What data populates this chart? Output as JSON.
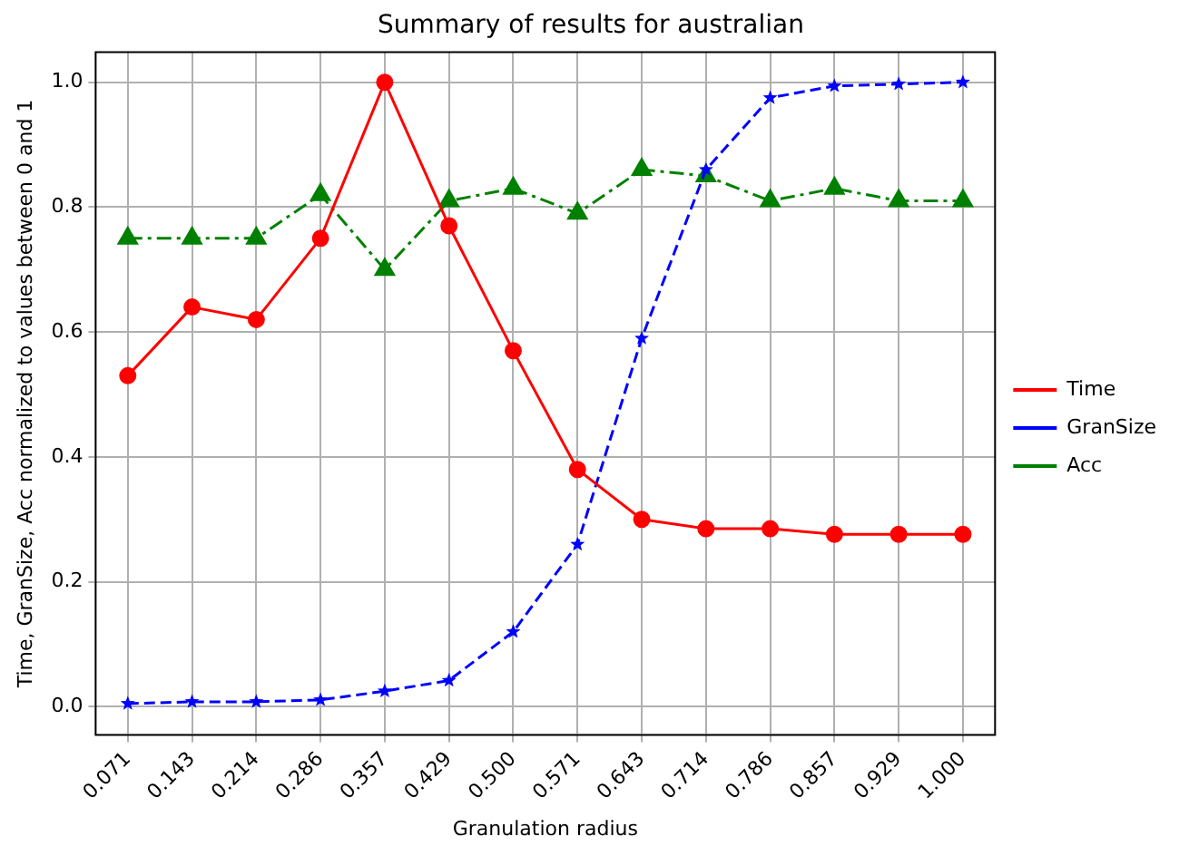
{
  "chart_data": {
    "type": "line",
    "title": "Summary of results for australian",
    "xlabel": "Granulation radius",
    "ylabel": "Time, GranSize, Acc normalized to values between 0 and 1",
    "categories": [
      "0.071",
      "0.143",
      "0.214",
      "0.286",
      "0.357",
      "0.429",
      "0.500",
      "0.571",
      "0.643",
      "0.714",
      "0.786",
      "0.857",
      "0.929",
      "1.000"
    ],
    "series": [
      {
        "name": "Time",
        "color": "#ff0000",
        "marker": "circle",
        "line_style": "solid",
        "values": [
          0.53,
          0.64,
          0.62,
          0.75,
          1.0,
          0.77,
          0.57,
          0.38,
          0.3,
          0.285,
          0.285,
          0.276,
          0.276,
          0.276
        ]
      },
      {
        "name": "GranSize",
        "color": "#0000ff",
        "marker": "star",
        "line_style": "dashed",
        "values": [
          0.005,
          0.008,
          0.008,
          0.011,
          0.025,
          0.042,
          0.12,
          0.26,
          0.59,
          0.86,
          0.975,
          0.994,
          0.997,
          1.0
        ]
      },
      {
        "name": "Acc",
        "color": "#008000",
        "marker": "triangle",
        "line_style": "dashdot",
        "values": [
          0.75,
          0.75,
          0.75,
          0.82,
          0.7,
          0.81,
          0.83,
          0.79,
          0.86,
          0.85,
          0.81,
          0.83,
          0.81,
          0.81
        ]
      }
    ],
    "ylim": [
      -0.045,
      1.048
    ],
    "yticks": [
      {
        "value": 0,
        "label": "0.0"
      },
      0.2,
      0.4,
      0.6,
      0.8,
      {
        "value": 1,
        "label": "1.0"
      }
    ],
    "grid": true,
    "legend": "right"
  }
}
